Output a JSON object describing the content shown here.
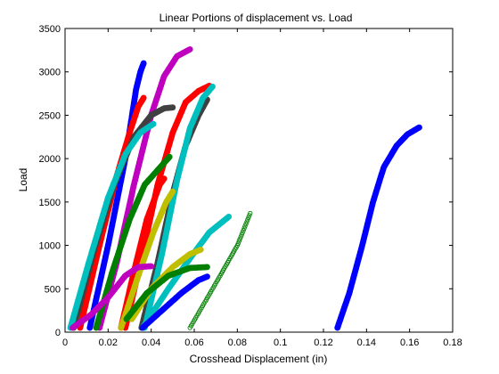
{
  "chart_data": {
    "type": "scatter",
    "title": "Linear Portions of displacement vs. Load",
    "xlabel": "Crosshead Displacement (in)",
    "ylabel": "Load",
    "xlim": [
      0,
      0.18
    ],
    "ylim": [
      0,
      3500
    ],
    "x_ticks": [
      0,
      0.02,
      0.04,
      0.06,
      0.08,
      0.1,
      0.12,
      0.14,
      0.16,
      0.18
    ],
    "x_tick_labels": [
      "0",
      "0.02",
      "0.04",
      "0.06",
      "0.08",
      "0.1",
      "0.12",
      "0.14",
      "0.16",
      "0.18"
    ],
    "y_ticks": [
      0,
      500,
      1000,
      1500,
      2000,
      2500,
      3000,
      3500
    ],
    "y_tick_labels": [
      "0",
      "500",
      "1000",
      "1500",
      "2000",
      "2500",
      "3000",
      "3500"
    ],
    "grid": false,
    "legend": "none",
    "series": [
      {
        "color": "#0000ff",
        "marker": "filled",
        "points": [
          [
            0.0115,
            50
          ],
          [
            0.02,
            1000
          ],
          [
            0.028,
            2000
          ],
          [
            0.033,
            2800
          ],
          [
            0.035,
            3000
          ],
          [
            0.0365,
            3100
          ]
        ]
      },
      {
        "color": "#ff0000",
        "marker": "filled",
        "points": [
          [
            0.007,
            50
          ],
          [
            0.016,
            1000
          ],
          [
            0.024,
            1800
          ],
          [
            0.03,
            2300
          ],
          [
            0.034,
            2600
          ],
          [
            0.0365,
            2700
          ]
        ]
      },
      {
        "color": "#bf00bf",
        "marker": "filled",
        "points": [
          [
            0.016,
            50
          ],
          [
            0.024,
            800
          ],
          [
            0.032,
            1700
          ],
          [
            0.04,
            2500
          ],
          [
            0.046,
            2950
          ],
          [
            0.052,
            3180
          ],
          [
            0.058,
            3260
          ]
        ]
      },
      {
        "color": "#ff0000",
        "marker": "filled",
        "points": [
          [
            0.028,
            50
          ],
          [
            0.036,
            900
          ],
          [
            0.043,
            1700
          ],
          [
            0.05,
            2300
          ],
          [
            0.056,
            2650
          ],
          [
            0.062,
            2780
          ],
          [
            0.067,
            2840
          ]
        ]
      },
      {
        "color": "#404040",
        "marker": "filled",
        "points": [
          [
            0.004,
            50
          ],
          [
            0.013,
            900
          ],
          [
            0.022,
            1650
          ],
          [
            0.032,
            2250
          ],
          [
            0.04,
            2500
          ],
          [
            0.046,
            2580
          ],
          [
            0.05,
            2590
          ]
        ]
      },
      {
        "color": "#404040",
        "marker": "filled",
        "points": [
          [
            0.0355,
            50
          ],
          [
            0.043,
            800
          ],
          [
            0.05,
            1600
          ],
          [
            0.056,
            2150
          ],
          [
            0.062,
            2500
          ],
          [
            0.066,
            2680
          ]
        ]
      },
      {
        "color": "#00bfbf",
        "marker": "filled",
        "points": [
          [
            0.0025,
            50
          ],
          [
            0.011,
            800
          ],
          [
            0.02,
            1550
          ],
          [
            0.028,
            2050
          ],
          [
            0.035,
            2300
          ],
          [
            0.041,
            2400
          ]
        ]
      },
      {
        "color": "#00bfbf",
        "marker": "filled",
        "points": [
          [
            0.037,
            50
          ],
          [
            0.045,
            900
          ],
          [
            0.052,
            1750
          ],
          [
            0.058,
            2350
          ],
          [
            0.064,
            2700
          ],
          [
            0.0685,
            2830
          ]
        ]
      },
      {
        "color": "#007f00",
        "marker": "filled",
        "points": [
          [
            0.0145,
            50
          ],
          [
            0.022,
            700
          ],
          [
            0.03,
            1300
          ],
          [
            0.037,
            1700
          ],
          [
            0.0485,
            2020
          ]
        ]
      },
      {
        "color": "#ff0000",
        "marker": "filled",
        "points": [
          [
            0.026,
            50
          ],
          [
            0.032,
            700
          ],
          [
            0.038,
            1300
          ],
          [
            0.044,
            1700
          ],
          [
            0.046,
            1770
          ]
        ]
      },
      {
        "color": "#bfbf00",
        "marker": "filled",
        "points": [
          [
            0.026,
            50
          ],
          [
            0.034,
            650
          ],
          [
            0.041,
            1150
          ],
          [
            0.047,
            1500
          ],
          [
            0.05,
            1620
          ]
        ]
      },
      {
        "color": "#00bfbf",
        "marker": "filled",
        "points": [
          [
            0.036,
            50
          ],
          [
            0.048,
            500
          ],
          [
            0.058,
            850
          ],
          [
            0.067,
            1150
          ],
          [
            0.076,
            1330
          ]
        ]
      },
      {
        "color": "#007f00",
        "marker": "open",
        "points": [
          [
            0.058,
            50
          ],
          [
            0.065,
            350
          ],
          [
            0.072,
            650
          ],
          [
            0.08,
            1000
          ],
          [
            0.086,
            1370
          ]
        ]
      },
      {
        "color": "#bfbf00",
        "marker": "filled",
        "points": [
          [
            0.031,
            150
          ],
          [
            0.04,
            500
          ],
          [
            0.05,
            750
          ],
          [
            0.058,
            900
          ],
          [
            0.063,
            950
          ]
        ]
      },
      {
        "color": "#007f00",
        "marker": "filled",
        "points": [
          [
            0.0285,
            150
          ],
          [
            0.038,
            450
          ],
          [
            0.048,
            650
          ],
          [
            0.058,
            740
          ],
          [
            0.066,
            750
          ]
        ]
      },
      {
        "color": "#bf00bf",
        "marker": "filled",
        "points": [
          [
            0.0035,
            50
          ],
          [
            0.012,
            200
          ],
          [
            0.02,
            400
          ],
          [
            0.028,
            650
          ],
          [
            0.034,
            750
          ],
          [
            0.04,
            760
          ]
        ]
      },
      {
        "color": "#0000ff",
        "marker": "filled",
        "points": [
          [
            0.036,
            50
          ],
          [
            0.045,
            250
          ],
          [
            0.054,
            450
          ],
          [
            0.062,
            600
          ],
          [
            0.066,
            640
          ]
        ]
      },
      {
        "color": "#0000ff",
        "marker": "filled",
        "points": [
          [
            0.1265,
            50
          ],
          [
            0.132,
            450
          ],
          [
            0.138,
            1000
          ],
          [
            0.143,
            1500
          ],
          [
            0.148,
            1900
          ],
          [
            0.154,
            2150
          ],
          [
            0.159,
            2280
          ],
          [
            0.1645,
            2360
          ]
        ]
      }
    ]
  }
}
